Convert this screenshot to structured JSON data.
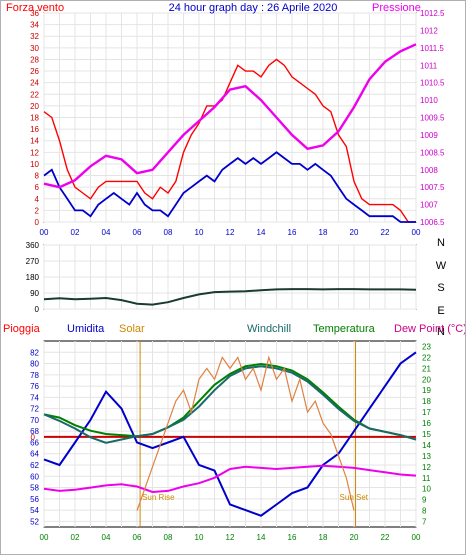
{
  "chart_data": [
    {
      "type": "line",
      "title": "24 hour graph day : 26 Aprile 2020",
      "left_label": "Forza vento",
      "right_label": "Pressione",
      "x_ticks": [
        "00",
        "02",
        "04",
        "06",
        "08",
        "10",
        "12",
        "14",
        "16",
        "18",
        "20",
        "22",
        "00"
      ],
      "y_left_ticks": [
        "0",
        "2",
        "4",
        "6",
        "8",
        "10",
        "12",
        "14",
        "16",
        "18",
        "20",
        "22",
        "24",
        "26",
        "28",
        "30",
        "32",
        "34",
        "36"
      ],
      "y_right_ticks": [
        "1006.5",
        "1007",
        "1007.5",
        "1008",
        "1008.5",
        "1009",
        "1009.5",
        "1010",
        "1010.5",
        "1011",
        "1011.5",
        "1012",
        "1012.5"
      ],
      "ylim_left": [
        0,
        36
      ],
      "ylim_right": [
        1006.5,
        1012.5
      ],
      "colors": {
        "gust": "#ff0000",
        "speed": "#0000cc",
        "pressure": "#ee00ee"
      },
      "series": [
        {
          "key": "gust",
          "axis": "left",
          "x": [
            0,
            0.5,
            1,
            1.5,
            2,
            2.5,
            3,
            3.5,
            4,
            4.5,
            5,
            5.5,
            6,
            6.5,
            7,
            7.5,
            8,
            8.5,
            9,
            9.5,
            10,
            10.5,
            11,
            11.5,
            12,
            12.5,
            13,
            13.5,
            14,
            14.5,
            15,
            15.5,
            16,
            16.5,
            17,
            17.5,
            18,
            18.5,
            19,
            19.5,
            20,
            20.5,
            21,
            21.5,
            22,
            22.5,
            23,
            23.5,
            24
          ],
          "values": [
            19,
            18,
            14,
            9,
            6,
            5,
            4,
            6,
            7,
            7,
            7,
            7,
            7,
            5,
            4,
            6,
            5,
            7,
            12,
            15,
            17,
            20,
            20,
            21,
            24,
            27,
            26,
            26,
            25,
            27,
            28,
            27,
            25,
            24,
            23,
            22,
            20,
            19,
            15,
            13,
            7,
            4,
            3,
            3,
            3,
            3,
            2,
            0,
            0
          ]
        },
        {
          "key": "speed",
          "axis": "left",
          "x": [
            0,
            0.5,
            1,
            1.5,
            2,
            2.5,
            3,
            3.5,
            4,
            4.5,
            5,
            5.5,
            6,
            6.5,
            7,
            7.5,
            8,
            8.5,
            9,
            9.5,
            10,
            10.5,
            11,
            11.5,
            12,
            12.5,
            13,
            13.5,
            14,
            14.5,
            15,
            15.5,
            16,
            16.5,
            17,
            17.5,
            18,
            18.5,
            19,
            19.5,
            20,
            20.5,
            21,
            21.5,
            22,
            22.5,
            23,
            23.5,
            24
          ],
          "values": [
            8,
            9,
            6,
            4,
            2,
            2,
            1,
            3,
            4,
            5,
            4,
            3,
            5,
            3,
            2,
            2,
            1,
            3,
            5,
            6,
            7,
            8,
            7,
            9,
            10,
            11,
            10,
            11,
            10,
            11,
            12,
            11,
            10,
            10,
            9,
            10,
            9,
            8,
            6,
            4,
            3,
            2,
            1,
            1,
            1,
            1,
            0,
            0,
            0
          ]
        },
        {
          "key": "pressure",
          "axis": "right",
          "x": [
            0,
            1,
            2,
            3,
            4,
            5,
            6,
            7,
            8,
            9,
            10,
            11,
            12,
            13,
            14,
            15,
            16,
            17,
            18,
            19,
            20,
            21,
            22,
            23,
            24
          ],
          "values": [
            1007.6,
            1007.5,
            1007.7,
            1008.1,
            1008.4,
            1008.3,
            1007.9,
            1008.0,
            1008.5,
            1009.0,
            1009.4,
            1009.8,
            1010.3,
            1010.4,
            1010.0,
            1009.5,
            1009.0,
            1008.6,
            1008.7,
            1009.1,
            1009.8,
            1010.6,
            1011.1,
            1011.4,
            1011.6
          ]
        }
      ]
    },
    {
      "type": "line",
      "title": "",
      "right_labels": [
        "N",
        "W",
        "S",
        "E",
        "N"
      ],
      "y_ticks": [
        "0",
        "90",
        "180",
        "270",
        "360"
      ],
      "x_ticks": [
        "00",
        "02",
        "04",
        "06",
        "08",
        "10",
        "12",
        "14",
        "16",
        "18",
        "20",
        "22",
        "00"
      ],
      "ylim": [
        0,
        360
      ],
      "series": [
        {
          "key": "direction",
          "color": "#1a3a32",
          "x": [
            0,
            1,
            2,
            3,
            4,
            5,
            6,
            7,
            8,
            9,
            10,
            11,
            12,
            13,
            14,
            15,
            16,
            17,
            18,
            19,
            20,
            21,
            22,
            23,
            24
          ],
          "values": [
            55,
            60,
            55,
            58,
            62,
            50,
            30,
            25,
            38,
            62,
            82,
            95,
            98,
            100,
            105,
            110,
            112,
            112,
            110,
            112,
            112,
            110,
            110,
            110,
            108
          ]
        }
      ]
    },
    {
      "type": "line",
      "title": "",
      "legend": [
        "Pioggia",
        "Umidita",
        "Solar",
        "Windchill",
        "Temperatura",
        "Dew Point (°C)"
      ],
      "legend_colors": [
        "#ff0000",
        "#0000cc",
        "#cc8800",
        "#1a6a6a",
        "#008000",
        "#cc0088"
      ],
      "y_left_ticks": [
        "52",
        "54",
        "56",
        "58",
        "60",
        "62",
        "64",
        "66",
        "68",
        "70",
        "72",
        "74",
        "76",
        "78",
        "80",
        "82"
      ],
      "y_right_ticks": [
        "7",
        "8",
        "9",
        "10",
        "11",
        "12",
        "13",
        "14",
        "15",
        "16",
        "17",
        "18",
        "19",
        "20",
        "21",
        "22",
        "23"
      ],
      "x_ticks": [
        "00",
        "02",
        "04",
        "06",
        "08",
        "10",
        "12",
        "14",
        "16",
        "18",
        "20",
        "22",
        "00"
      ],
      "rain_label": "0",
      "rain_value": 0,
      "sunrise_label": "Sun Rise",
      "sunset_label": "Sun Set",
      "sunrise_hour": 6.2,
      "sunset_hour": 20.1,
      "ylim_left": [
        51,
        84
      ],
      "ylim_right": [
        6.5,
        23.5
      ],
      "series": [
        {
          "key": "humidity",
          "axis": "left",
          "color": "#0000cc",
          "x": [
            0,
            1,
            2,
            3,
            4,
            5,
            6,
            7,
            8,
            9,
            10,
            11,
            12,
            13,
            14,
            15,
            16,
            17,
            18,
            19,
            20,
            21,
            22,
            23,
            24
          ],
          "values": [
            63,
            62,
            66,
            70,
            75,
            72,
            66,
            65,
            66,
            67,
            62,
            61,
            55,
            54,
            53,
            55,
            57,
            58,
            62,
            64,
            68,
            72,
            76,
            80,
            82
          ]
        },
        {
          "key": "temperature",
          "axis": "right",
          "color": "#008000",
          "x": [
            0,
            1,
            2,
            3,
            4,
            5,
            6,
            7,
            8,
            9,
            10,
            11,
            12,
            13,
            14,
            15,
            16,
            17,
            18,
            19,
            20,
            21,
            22,
            23,
            24
          ],
          "values": [
            16.8,
            16.5,
            15.8,
            15.3,
            15.0,
            14.9,
            14.8,
            15.0,
            15.6,
            16.5,
            18.0,
            19.5,
            20.5,
            21.2,
            21.4,
            21.2,
            20.8,
            20.0,
            18.8,
            17.5,
            16.3,
            15.5,
            15.2,
            14.9,
            14.5
          ]
        },
        {
          "key": "windchill",
          "axis": "right",
          "color": "#1a6a6a",
          "x": [
            0,
            1,
            2,
            3,
            4,
            5,
            6,
            7,
            8,
            9,
            10,
            11,
            12,
            13,
            14,
            15,
            16,
            17,
            18,
            19,
            20,
            21,
            22,
            23,
            24
          ],
          "values": [
            16.8,
            16.2,
            15.5,
            14.7,
            14.2,
            14.5,
            14.8,
            15.0,
            15.6,
            16.3,
            17.5,
            19.0,
            20.3,
            21.0,
            21.2,
            21.0,
            20.6,
            19.8,
            18.6,
            17.3,
            16.2,
            15.5,
            15.2,
            14.9,
            14.5
          ]
        },
        {
          "key": "dewpoint",
          "axis": "right",
          "color": "#ee00ee",
          "x": [
            0,
            1,
            2,
            3,
            4,
            5,
            6,
            7,
            8,
            9,
            10,
            11,
            12,
            13,
            14,
            15,
            16,
            17,
            18,
            19,
            20,
            21,
            22,
            23,
            24
          ],
          "values": [
            10.0,
            9.8,
            9.9,
            10.1,
            10.3,
            10.4,
            10.2,
            9.7,
            9.8,
            10.2,
            10.5,
            11.0,
            11.8,
            12.0,
            11.9,
            11.8,
            11.9,
            12.0,
            12.1,
            12.0,
            11.9,
            11.7,
            11.5,
            11.3,
            11.2
          ]
        },
        {
          "key": "solar",
          "axis": "right",
          "color": "#e08040",
          "x": [
            6,
            6.5,
            7,
            7.5,
            8,
            8.5,
            9,
            9.5,
            10,
            10.5,
            11,
            11.5,
            12,
            12.5,
            13,
            13.5,
            14,
            14.5,
            15,
            15.5,
            16,
            16.5,
            17,
            17.5,
            18,
            18.5,
            19,
            19.5,
            20
          ],
          "values": [
            8,
            10,
            12,
            14,
            16,
            18,
            19,
            17,
            20,
            21,
            20,
            22,
            21,
            22,
            20,
            21,
            19,
            22,
            20,
            21,
            18,
            20,
            17,
            18,
            16,
            15,
            13,
            11,
            8
          ]
        }
      ]
    }
  ]
}
